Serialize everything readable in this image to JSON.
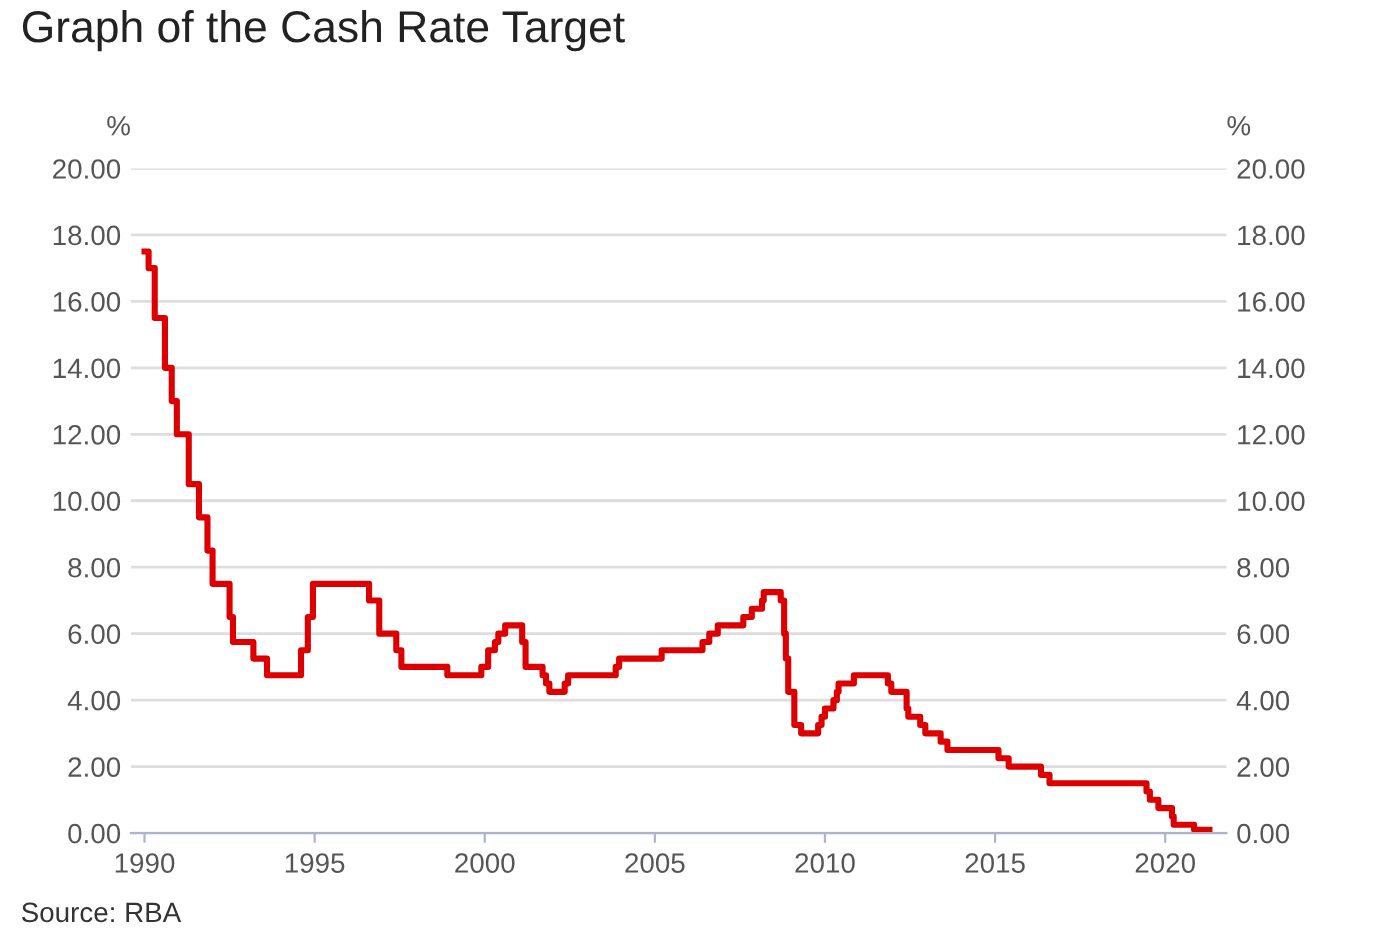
{
  "chart_data": {
    "type": "step",
    "title": "Graph of the Cash Rate Target",
    "ylabel": "%",
    "y2label": "%",
    "annotations": [
      "Source: RBA"
    ],
    "x": [
      1990.0,
      1990.12,
      1990.3,
      1990.6,
      1990.8,
      1990.95,
      1991.3,
      1991.6,
      1991.85,
      1992.0,
      1992.5,
      1992.6,
      1993.2,
      1993.6,
      1994.6,
      1994.8,
      1994.95,
      1996.6,
      1996.9,
      1997.4,
      1997.55,
      1998.9,
      1999.9,
      2000.1,
      2000.3,
      2000.4,
      2000.6,
      2001.1,
      2001.2,
      2001.7,
      2001.8,
      2001.9,
      2002.35,
      2002.45,
      2003.85,
      2003.95,
      2005.2,
      2006.4,
      2006.6,
      2006.85,
      2007.6,
      2007.85,
      2008.15,
      2008.2,
      2008.7,
      2008.8,
      2008.85,
      2008.92,
      2009.1,
      2009.3,
      2009.8,
      2009.9,
      2010.0,
      2010.25,
      2010.35,
      2010.4,
      2010.85,
      2011.85,
      2011.95,
      2012.4,
      2012.45,
      2012.8,
      2012.95,
      2013.4,
      2013.6,
      2015.1,
      2015.4,
      2016.35,
      2016.6,
      2019.45,
      2019.55,
      2019.8,
      2020.2,
      2020.25,
      2020.85,
      2021.3
    ],
    "series": [
      {
        "color": "#dd0000",
        "values": [
          17.5,
          17.0,
          15.5,
          14.0,
          13.0,
          12.0,
          10.5,
          9.5,
          8.5,
          7.5,
          6.5,
          5.75,
          5.25,
          4.75,
          5.5,
          6.5,
          7.5,
          7.0,
          6.0,
          5.5,
          5.0,
          4.75,
          5.0,
          5.5,
          5.75,
          6.0,
          6.25,
          5.75,
          5.0,
          4.75,
          4.5,
          4.25,
          4.5,
          4.75,
          5.0,
          5.25,
          5.5,
          5.75,
          6.0,
          6.25,
          6.5,
          6.75,
          7.0,
          7.25,
          7.0,
          6.0,
          5.25,
          4.25,
          3.25,
          3.0,
          3.25,
          3.5,
          3.75,
          4.0,
          4.25,
          4.5,
          4.75,
          4.5,
          4.25,
          3.75,
          3.5,
          3.25,
          3.0,
          2.75,
          2.5,
          2.25,
          2.0,
          1.75,
          1.5,
          1.25,
          1.0,
          0.75,
          0.5,
          0.25,
          0.1,
          0.1
        ]
      }
    ],
    "xlim": [
      1989.6,
      2021.8
    ],
    "xticks": [
      1990,
      1995,
      2000,
      2005,
      2010,
      2015,
      2020
    ],
    "ylim": [
      0,
      20
    ],
    "yticks": [
      {
        "value": 0,
        "label": "0.00"
      },
      {
        "value": 2,
        "label": "2.00"
      },
      {
        "value": 4,
        "label": "4.00"
      },
      {
        "value": 6,
        "label": "6.00"
      },
      {
        "value": 8,
        "label": "8.00"
      },
      {
        "value": 10,
        "label": "10.00"
      },
      {
        "value": 12,
        "label": "12.00"
      },
      {
        "value": 14,
        "label": "14.00"
      },
      {
        "value": 16,
        "label": "16.00"
      },
      {
        "value": 18,
        "label": "18.00"
      },
      {
        "value": 20,
        "label": "20.00"
      }
    ],
    "y2lim": [
      0,
      20
    ],
    "y2ticks": [
      {
        "value": 0,
        "label": "0.00"
      },
      {
        "value": 2,
        "label": "2.00"
      },
      {
        "value": 4,
        "label": "4.00"
      },
      {
        "value": 6,
        "label": "6.00"
      },
      {
        "value": 8,
        "label": "8.00"
      },
      {
        "value": 10,
        "label": "10.00"
      },
      {
        "value": 12,
        "label": "12.00"
      },
      {
        "value": 14,
        "label": "14.00"
      },
      {
        "value": 16,
        "label": "16.00"
      },
      {
        "value": 18,
        "label": "18.00"
      },
      {
        "value": 20,
        "label": "20.00"
      }
    ],
    "grid": "y",
    "legend": false
  }
}
